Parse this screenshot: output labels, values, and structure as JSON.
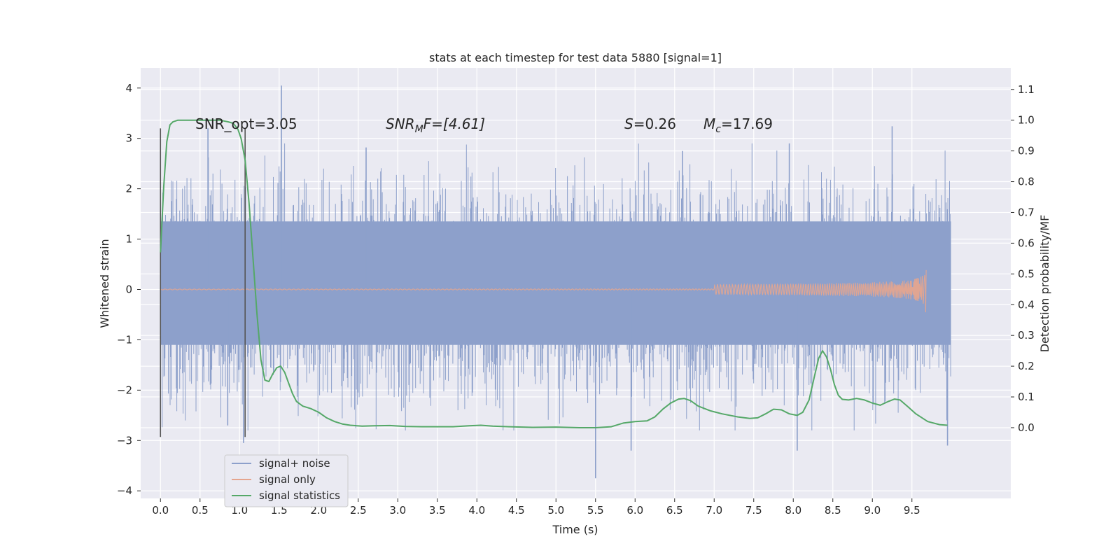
{
  "chart_data": {
    "type": "line",
    "title": "stats at each timestep for test data 5880 [signal=1]",
    "xlabel": "Time (s)",
    "ylabel_left": "Whitened strain",
    "ylabel_right": "Detection probability/MF",
    "xlim": [
      -0.25,
      10.75
    ],
    "ylim_left": [
      -4.15,
      4.4
    ],
    "ylim_right": [
      -0.23,
      1.17
    ],
    "x_ticks": [
      "0.0",
      "0.5",
      "1.0",
      "1.5",
      "2.0",
      "2.5",
      "3.0",
      "3.5",
      "4.0",
      "4.5",
      "5.0",
      "5.5",
      "6.0",
      "6.5",
      "7.0",
      "7.5",
      "8.0",
      "8.5",
      "9.0",
      "9.5"
    ],
    "y_left_ticks": [
      "−4",
      "−3",
      "−2",
      "−1",
      "0",
      "1",
      "2",
      "3",
      "4"
    ],
    "y_right_ticks": [
      "0.0",
      "0.1",
      "0.2",
      "0.3",
      "0.4",
      "0.5",
      "0.6",
      "0.7",
      "0.8",
      "0.9",
      "1.0",
      "1.1"
    ],
    "grid": true,
    "legend_position": "lower-left",
    "colors": {
      "noise": "#8da0cb",
      "signal": "#e5a58e",
      "stats": "#55a868",
      "background": "#eaeaf2",
      "grid": "#ffffff",
      "vline": "#555555"
    },
    "annotations": {
      "snr_opt": "SNR_opt=3.05",
      "snr_mf_a": "SNR",
      "snr_mf_b": "M",
      "snr_mf_c": "F=[4.61]",
      "s_a": "S",
      "s_b": "=0.26",
      "mc_a": "M",
      "mc_b": "c",
      "mc_c": "=17.69"
    },
    "vertical_lines": [
      {
        "x": 0.0,
        "y_range": [
          -2.93,
          3.2
        ]
      },
      {
        "x": 1.07,
        "y_range": [
          -2.93,
          3.2
        ]
      }
    ],
    "series": [
      {
        "name": "signal+ noise",
        "envelope": {
          "x_start": 0.0,
          "x_end": 9.99,
          "band": [
            -1.1,
            1.35
          ]
        },
        "peaks": [
          {
            "x": 1.53,
            "y": 4.05
          },
          {
            "x": 9.25,
            "y": 3.24
          },
          {
            "x": 0.6,
            "y": 3.2
          },
          {
            "x": 7.95,
            "y": 2.9
          },
          {
            "x": 2.6,
            "y": 2.82
          },
          {
            "x": 6.6,
            "y": 2.75
          },
          {
            "x": 5.5,
            "y": -3.75
          },
          {
            "x": 8.05,
            "y": -3.2
          },
          {
            "x": 5.95,
            "y": -3.2
          },
          {
            "x": 9.95,
            "y": -3.1
          },
          {
            "x": 1.05,
            "y": -3.05
          },
          {
            "x": 0.85,
            "y": -2.7
          }
        ]
      },
      {
        "name": "signal only",
        "x_start": 0.0,
        "x_end": 9.68,
        "final_amplitude": 0.52
      },
      {
        "name": "signal statistics",
        "x": [
          0.0,
          0.04,
          0.08,
          0.12,
          0.16,
          0.22,
          0.3,
          0.45,
          0.6,
          0.75,
          0.85,
          0.92,
          0.98,
          1.02,
          1.07,
          1.12,
          1.17,
          1.22,
          1.27,
          1.32,
          1.37,
          1.42,
          1.47,
          1.52,
          1.57,
          1.62,
          1.67,
          1.72,
          1.8,
          1.9,
          2.0,
          2.1,
          2.2,
          2.3,
          2.4,
          2.55,
          2.7,
          2.9,
          3.1,
          3.3,
          3.5,
          3.7,
          3.9,
          4.05,
          4.2,
          4.4,
          4.7,
          5.0,
          5.3,
          5.5,
          5.7,
          5.85,
          6.0,
          6.15,
          6.25,
          6.35,
          6.45,
          6.55,
          6.62,
          6.7,
          6.8,
          6.95,
          7.1,
          7.3,
          7.45,
          7.55,
          7.65,
          7.75,
          7.85,
          7.95,
          8.05,
          8.12,
          8.2,
          8.27,
          8.32,
          8.37,
          8.42,
          8.47,
          8.52,
          8.57,
          8.62,
          8.7,
          8.8,
          8.9,
          9.0,
          9.1,
          9.2,
          9.28,
          9.35,
          9.45,
          9.55,
          9.7,
          9.85,
          9.95
        ],
        "y": [
          0.57,
          0.78,
          0.93,
          0.985,
          0.995,
          1.0,
          1.0,
          1.0,
          1.0,
          1.0,
          0.995,
          0.99,
          0.97,
          0.94,
          0.87,
          0.73,
          0.55,
          0.37,
          0.22,
          0.155,
          0.15,
          0.175,
          0.195,
          0.2,
          0.18,
          0.145,
          0.11,
          0.085,
          0.07,
          0.062,
          0.05,
          0.032,
          0.02,
          0.012,
          0.008,
          0.005,
          0.006,
          0.007,
          0.004,
          0.003,
          0.003,
          0.003,
          0.006,
          0.008,
          0.005,
          0.003,
          0.001,
          0.002,
          0.0,
          0.0,
          0.003,
          0.015,
          0.02,
          0.022,
          0.035,
          0.06,
          0.08,
          0.093,
          0.095,
          0.088,
          0.07,
          0.055,
          0.045,
          0.035,
          0.03,
          0.032,
          0.045,
          0.06,
          0.058,
          0.045,
          0.04,
          0.05,
          0.09,
          0.17,
          0.225,
          0.25,
          0.23,
          0.19,
          0.14,
          0.105,
          0.092,
          0.09,
          0.095,
          0.09,
          0.08,
          0.073,
          0.085,
          0.093,
          0.09,
          0.068,
          0.045,
          0.02,
          0.01,
          0.008
        ]
      }
    ]
  }
}
